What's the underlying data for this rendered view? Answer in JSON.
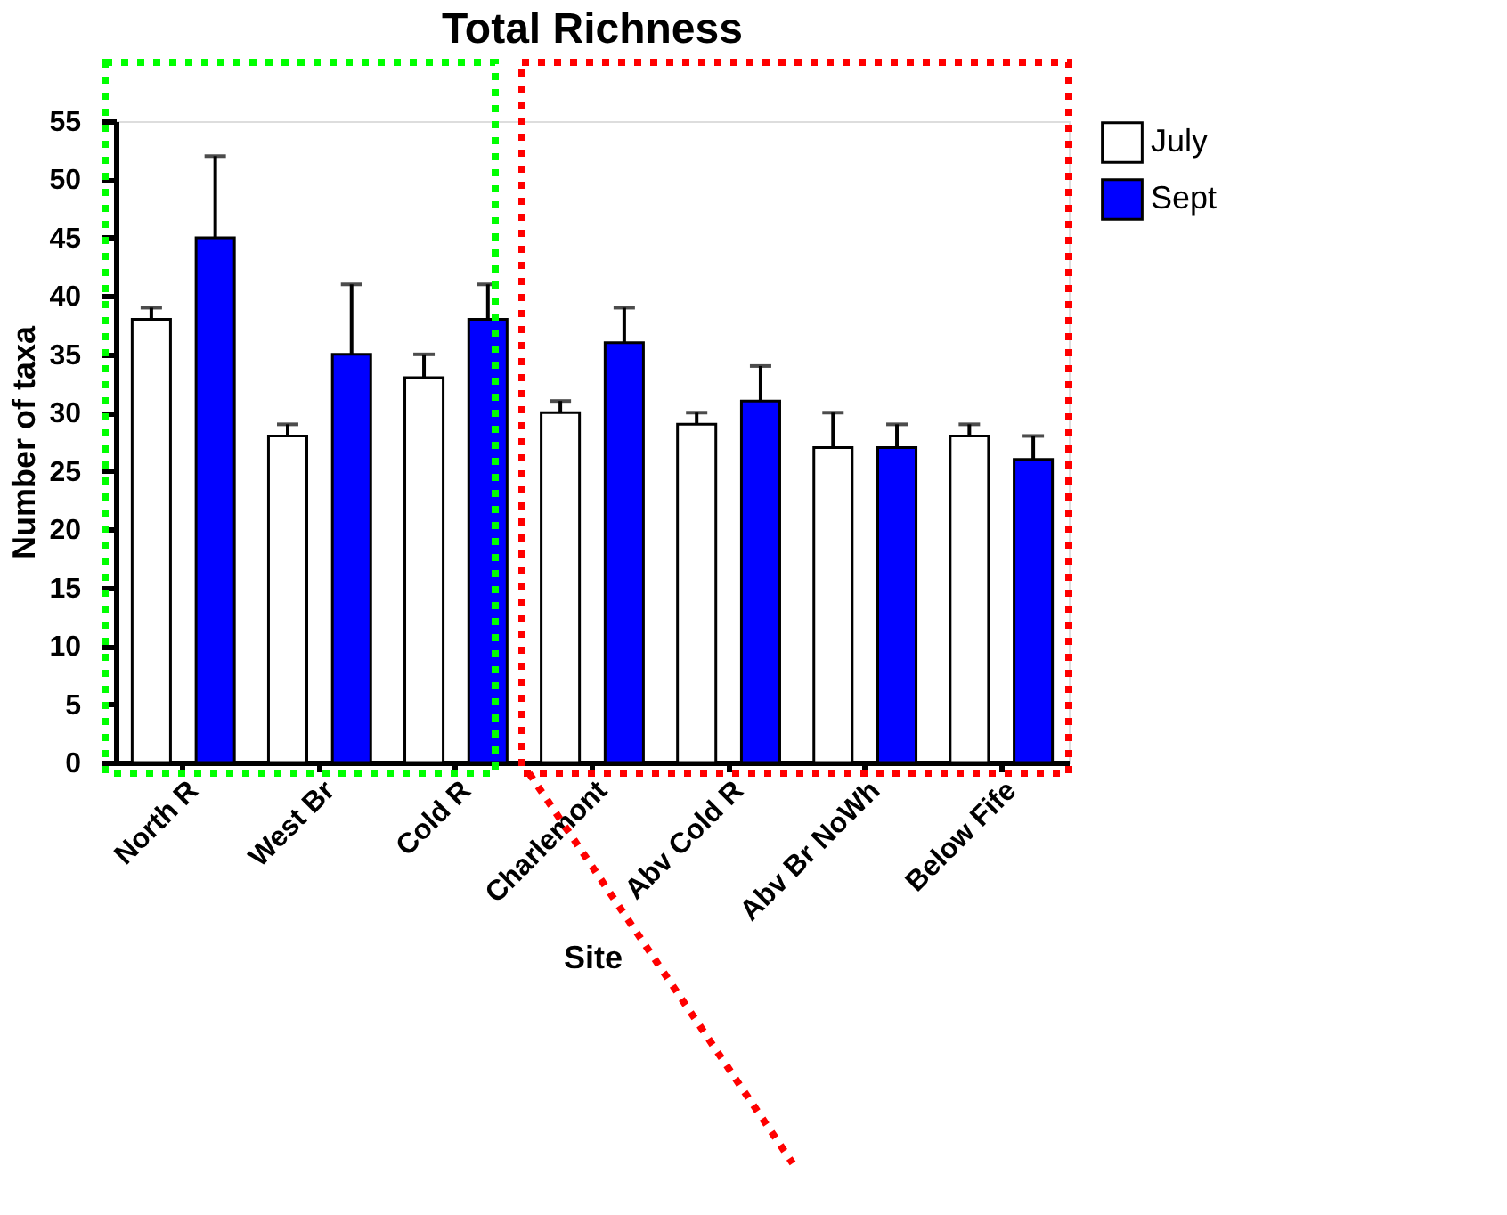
{
  "chart_data": {
    "type": "bar",
    "title": "Total Richness",
    "xlabel": "Site",
    "ylabel": "Number of taxa",
    "categories": [
      "North R",
      "West Br",
      "Cold R",
      "Charlemont",
      "Abv Cold R",
      "Abv Br NoWh",
      "Below Fife"
    ],
    "series": [
      {
        "name": "July",
        "color": "#ffffff",
        "values": [
          38,
          28,
          33,
          30,
          29,
          27,
          28
        ],
        "errors": [
          [
            38,
            39
          ],
          [
            28,
            29
          ],
          [
            33,
            35
          ],
          [
            30,
            31
          ],
          [
            29,
            30
          ],
          [
            27,
            30
          ],
          [
            28,
            29
          ]
        ]
      },
      {
        "name": "Sept",
        "color": "#0000ff",
        "values": [
          45,
          35,
          38,
          36,
          31,
          27,
          26
        ],
        "errors": [
          [
            45,
            52
          ],
          [
            35,
            41
          ],
          [
            38,
            41
          ],
          [
            36,
            39
          ],
          [
            31,
            34
          ],
          [
            27,
            29
          ],
          [
            26,
            28
          ]
        ]
      }
    ],
    "ylim": [
      0,
      55
    ],
    "yticks": [
      0,
      5,
      10,
      15,
      20,
      25,
      30,
      35,
      40,
      45,
      50,
      55
    ],
    "grid": false,
    "legend": "top right"
  }
}
